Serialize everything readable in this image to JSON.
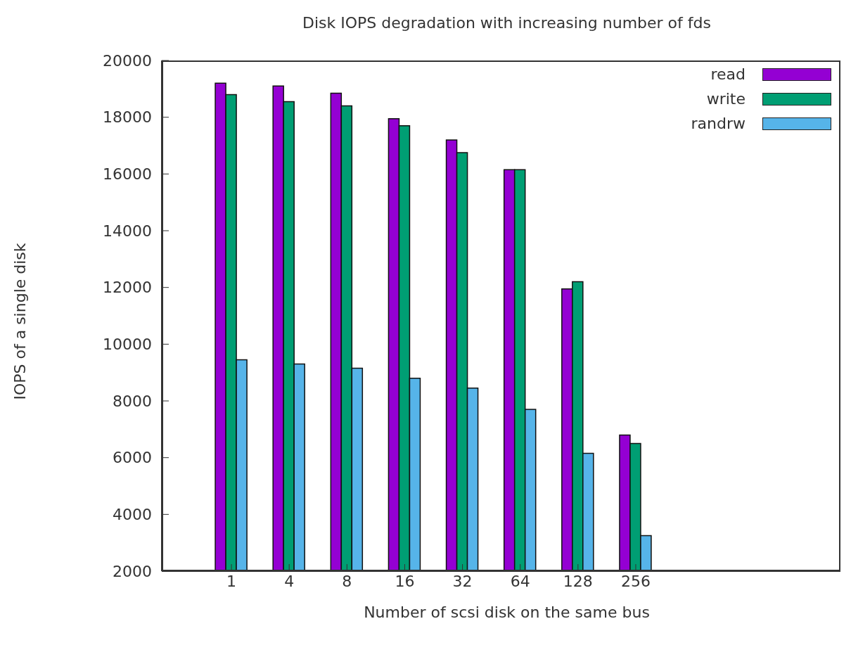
{
  "chart_data": {
    "type": "bar",
    "title": "Disk IOPS degradation with increasing number of fds",
    "xlabel": "Number of scsi disk on the same bus",
    "ylabel": "IOPS of a single disk",
    "categories": [
      "1",
      "4",
      "8",
      "16",
      "32",
      "64",
      "128",
      "256"
    ],
    "series": [
      {
        "name": "read",
        "color": "#9400d3",
        "values": [
          19200,
          19100,
          18850,
          17950,
          17200,
          16150,
          11950,
          6800
        ]
      },
      {
        "name": "write",
        "color": "#009e73",
        "values": [
          18800,
          18550,
          18400,
          17700,
          16750,
          16150,
          12200,
          6500
        ]
      },
      {
        "name": "randrw",
        "color": "#56b4e9",
        "values": [
          9450,
          9300,
          9150,
          8800,
          8450,
          7700,
          6150,
          3250
        ]
      }
    ],
    "ylim": [
      2000,
      20000
    ],
    "yticks": [
      2000,
      4000,
      6000,
      8000,
      10000,
      12000,
      14000,
      16000,
      18000,
      20000
    ],
    "grid": false,
    "legend": "top right"
  }
}
